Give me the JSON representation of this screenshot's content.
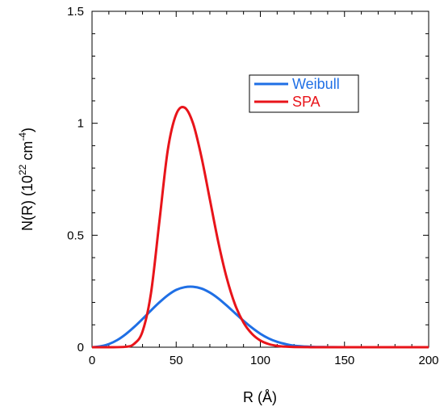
{
  "chart_data": {
    "type": "line",
    "xlabel": "R (Å)",
    "ylabel_parts": {
      "base": "N(R) (10",
      "exp1": "22",
      "mid": " cm",
      "exp2": "-4",
      "end": ")"
    },
    "xlim": [
      0,
      200
    ],
    "ylim": [
      0,
      1.5
    ],
    "x_ticks": [
      0,
      50,
      100,
      150,
      200
    ],
    "x_tick_labels": [
      "0",
      "50",
      "100",
      "150",
      "200"
    ],
    "y_ticks": [
      0,
      0.5,
      1,
      1.5
    ],
    "y_tick_labels": [
      "0",
      "0.5",
      "1",
      "1.5"
    ],
    "grid": false,
    "legend_position": "top-right",
    "series": [
      {
        "name": "Weibull",
        "color": "#1f6fe5",
        "x": [
          0,
          5,
          10,
          15,
          20,
          25,
          30,
          35,
          40,
          45,
          50,
          55,
          60,
          65,
          70,
          75,
          80,
          85,
          90,
          95,
          100,
          105,
          110,
          115,
          120,
          130,
          140,
          150,
          175,
          200
        ],
        "y": [
          0,
          0.004,
          0.014,
          0.032,
          0.058,
          0.09,
          0.126,
          0.164,
          0.2,
          0.232,
          0.256,
          0.268,
          0.27,
          0.262,
          0.244,
          0.218,
          0.186,
          0.152,
          0.118,
          0.087,
          0.06,
          0.039,
          0.024,
          0.014,
          0.007,
          0.002,
          0.0006,
          0.0001,
          0,
          0
        ]
      },
      {
        "name": "SPA",
        "color": "#e8141a",
        "x": [
          0,
          10,
          20,
          25,
          30,
          35,
          40,
          45,
          50,
          55,
          60,
          65,
          70,
          75,
          80,
          85,
          90,
          95,
          100,
          105,
          110,
          115,
          120,
          130,
          140,
          150,
          175,
          200
        ],
        "y": [
          0,
          0,
          0.002,
          0.015,
          0.07,
          0.24,
          0.56,
          0.88,
          1.04,
          1.07,
          1.0,
          0.85,
          0.66,
          0.47,
          0.31,
          0.19,
          0.11,
          0.06,
          0.03,
          0.014,
          0.006,
          0.0025,
          0.001,
          0.0002,
          0,
          0,
          0,
          0
        ]
      }
    ]
  }
}
